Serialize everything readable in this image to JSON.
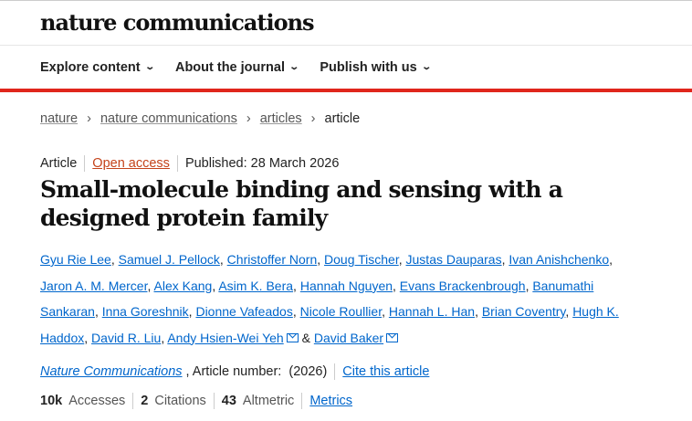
{
  "header": {
    "logo": "nature communications"
  },
  "nav": {
    "items": [
      "Explore content",
      "About the journal",
      "Publish with us"
    ]
  },
  "breadcrumb": {
    "items": [
      "nature",
      "nature communications",
      "articles"
    ],
    "current": "article"
  },
  "meta": {
    "type": "Article",
    "access": "Open access",
    "published": "Published: 28 March 2026"
  },
  "title": "Small-molecule binding and sensing with a designed protein family",
  "authors": [
    "Gyu Rie Lee",
    "Samuel J. Pellock",
    "Christoffer Norn",
    "Doug Tischer",
    "Justas Dauparas",
    "Ivan Anishchenko",
    "Jaron A. M. Mercer",
    "Alex Kang",
    "Asim K. Bera",
    "Hannah Nguyen",
    "Evans Brackenbrough",
    "Banumathi Sankaran",
    "Inna Goreshnik",
    "Dionne Vafeados",
    "Nicole Roullier",
    "Hannah L. Han",
    "Brian Coventry",
    "Hugh K. Haddox",
    "David R. Liu",
    "Andy Hsien-Wei Yeh",
    "David Baker"
  ],
  "authors_and": "&",
  "citation": {
    "journal": "Nature Communications",
    "article_number": ", Article number:  (2026)",
    "cite_label": "Cite this article"
  },
  "stats": {
    "accesses_value": "10k",
    "accesses_label": "Accesses",
    "citations_value": "2",
    "citations_label": "Citations",
    "altmetric_value": "43",
    "altmetric_label": "Altmetric",
    "metrics_label": "Metrics"
  }
}
